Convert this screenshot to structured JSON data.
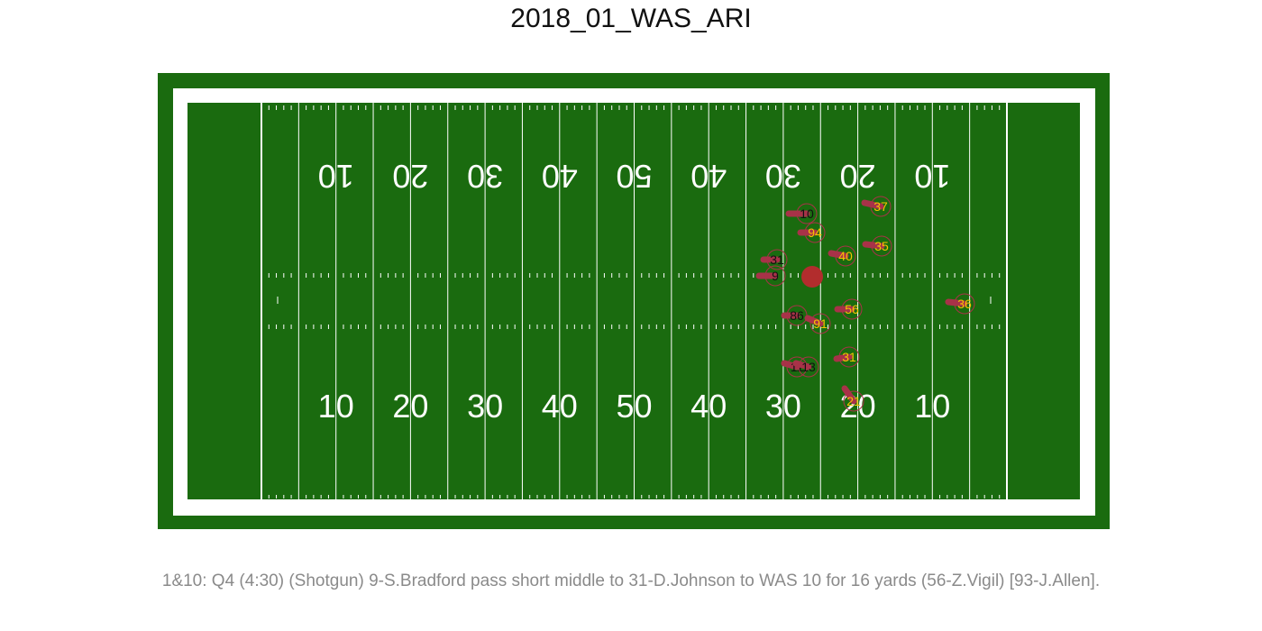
{
  "play": {
    "title": "2018_01_WAS_ARI",
    "description": "1&10: Q4 (4:30) (Shotgun) 9-S.Bradford pass short middle to 31-D.Johnson to WAS 10 for 16 yards (56-Z.Vigil) [93-J.Allen]."
  },
  "field": {
    "yard_numbers": [
      "10",
      "20",
      "30",
      "40",
      "50",
      "40",
      "30",
      "20",
      "10"
    ],
    "colors": {
      "surround": "#1a6b0f",
      "border": "#ffffff",
      "turf": "#1a6b0f",
      "lines": "#ffffff"
    }
  },
  "ball": {
    "color": "#b22d2d"
  },
  "teams": {
    "offense": {
      "label_color": "#111111",
      "marker_color": "#a83248"
    },
    "defense": {
      "label_color": "#f5c400",
      "marker_color": "#a83248"
    }
  },
  "players": [
    {
      "jersey": "10",
      "team": "offense"
    },
    {
      "jersey": "31",
      "team": "offense"
    },
    {
      "jersey": "9",
      "team": "offense"
    },
    {
      "jersey": "86",
      "team": "offense"
    },
    {
      "jersey": "11",
      "team": "offense"
    },
    {
      "jersey": "13",
      "team": "offense"
    },
    {
      "jersey": "37",
      "team": "defense"
    },
    {
      "jersey": "94",
      "team": "defense"
    },
    {
      "jersey": "35",
      "team": "defense"
    },
    {
      "jersey": "40",
      "team": "defense"
    },
    {
      "jersey": "56",
      "team": "defense"
    },
    {
      "jersey": "91",
      "team": "defense"
    },
    {
      "jersey": "36",
      "team": "defense"
    },
    {
      "jersey": "31",
      "team": "defense"
    },
    {
      "jersey": "21",
      "team": "defense"
    }
  ]
}
